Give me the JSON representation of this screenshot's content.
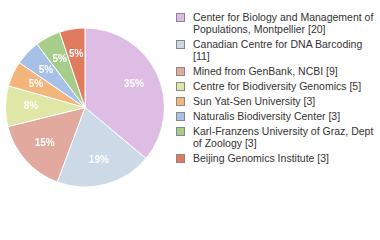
{
  "chart_data": {
    "type": "pie",
    "categories": [
      "Center for Biology and Management of Populations, Montpellier [20]",
      "Canadian Centre for DNA Barcoding [11]",
      "Mined from GenBank, NCBI [9]",
      "Centre for Biodiversity Genomics [5]",
      "Sun Yat-Sen University [3]",
      "Naturalis Biodiversity Center [3]",
      "Karl-Franzens University of Graz, Dept of Zoology [3]",
      "Beijing Genomics Institute [3]"
    ],
    "values": [
      35,
      19,
      15,
      8,
      5,
      5,
      5,
      5
    ],
    "value_labels": [
      "35%",
      "19%",
      "15%",
      "8%",
      "5%",
      "5%",
      "5%",
      "5%"
    ],
    "colors": [
      "#ddbde3",
      "#ccd9e6",
      "#e2a99e",
      "#e0e6a6",
      "#f2b57c",
      "#a6c0e8",
      "#a6cd89",
      "#e07b5f"
    ],
    "data_labels": true,
    "legend": "right"
  }
}
